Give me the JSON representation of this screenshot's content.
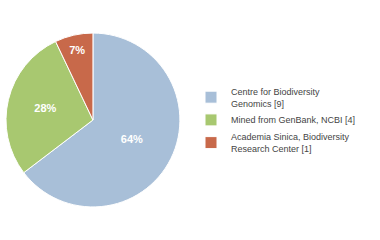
{
  "chart_data": {
    "type": "pie",
    "categories": [
      "Centre for Biodiversity\nGenomics [9]",
      "Mined from GenBank, NCBI [4]",
      "Academia Sinica, Biodiversity\nResearch Center [1]"
    ],
    "values": [
      64,
      28,
      7
    ],
    "value_labels": [
      "64%",
      "28%",
      "7%"
    ],
    "data_labels": true,
    "colors": [
      "#a8bfd8",
      "#a8c870",
      "#c8694a"
    ],
    "legend": "right"
  }
}
